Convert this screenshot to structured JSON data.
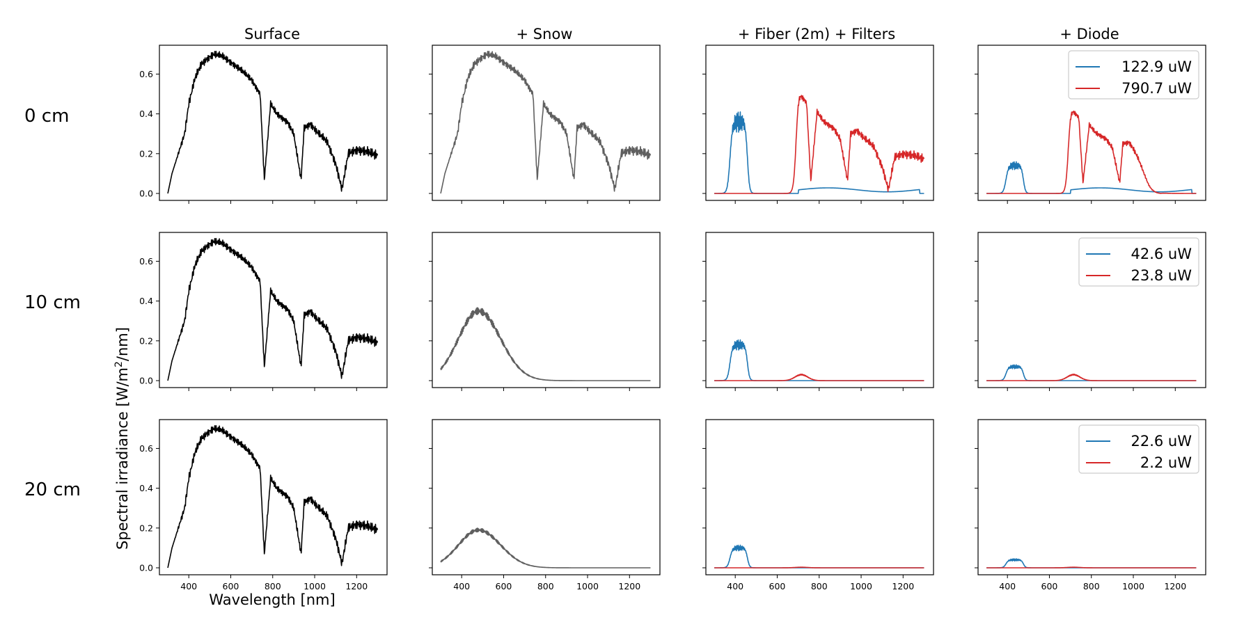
{
  "figure": {
    "xlabel": "Wavelength [nm]",
    "ylabel_prefix": "Spectral irradiance [W/m",
    "ylabel_sup": "2",
    "ylabel_suffix": "/nm]"
  },
  "columns": [
    {
      "title": "Surface"
    },
    {
      "title": "+ Snow"
    },
    {
      "title": "+ Fiber (2m) + Filters"
    },
    {
      "title": "+ Diode"
    }
  ],
  "rows": [
    {
      "label": "0 cm"
    },
    {
      "label": "10 cm"
    },
    {
      "label": "20 cm"
    }
  ],
  "colors": {
    "surface": "#000000",
    "snow": "#5f5f5f",
    "blue": "#1f77b4",
    "red": "#d62728",
    "frame": "#000000"
  },
  "chart_data": {
    "type": "line",
    "layout": "grid 3 rows x 4 columns",
    "x_range": [
      300,
      1300
    ],
    "xlim": [
      260,
      1345
    ],
    "ylim": [
      -0.035,
      0.745
    ],
    "x_ticks": [
      400,
      600,
      800,
      1000,
      1200
    ],
    "x_tick_labels": [
      "400",
      "600",
      "800",
      "1000",
      "1200"
    ],
    "y_ticks": [
      0.0,
      0.2,
      0.4,
      0.6
    ],
    "y_tick_labels": [
      "0.0",
      "0.2",
      "0.4",
      "0.6"
    ],
    "grid": false,
    "legend_position": "upper right",
    "attenuation_factor_by_depth": [
      1.0,
      0.5,
      0.26
    ],
    "surface_spectrum_key_points": {
      "x": [
        300,
        320,
        350,
        380,
        400,
        430,
        460,
        490,
        520,
        560,
        600,
        650,
        700,
        740,
        760,
        790,
        820,
        870,
        900,
        935,
        950,
        980,
        1010,
        1060,
        1100,
        1130,
        1160,
        1200,
        1250,
        1300
      ],
      "y": [
        0.0,
        0.1,
        0.2,
        0.3,
        0.45,
        0.58,
        0.65,
        0.68,
        0.7,
        0.69,
        0.66,
        0.62,
        0.57,
        0.5,
        0.07,
        0.45,
        0.4,
        0.36,
        0.3,
        0.07,
        0.33,
        0.35,
        0.31,
        0.26,
        0.15,
        0.02,
        0.2,
        0.22,
        0.21,
        0.19
      ]
    },
    "snow_surface_0cm": "same shape as surface, gray",
    "snow_10cm_peak": {
      "x": 480,
      "y": 0.35
    },
    "snow_20cm_peak": {
      "x": 480,
      "y": 0.19
    },
    "legends": [
      [
        {
          "name": "122.9 uW",
          "color": "#1f77b4"
        },
        {
          "name": "790.7 uW",
          "color": "#d62728"
        }
      ],
      [
        {
          "name": "42.6 uW",
          "color": "#1f77b4"
        },
        {
          "name": "23.8 uW",
          "color": "#d62728"
        }
      ],
      [
        {
          "name": "22.6 uW",
          "color": "#1f77b4"
        },
        {
          "name": "2.2 uW",
          "color": "#d62728"
        }
      ]
    ],
    "filter_peaks": {
      "fiber_blue": [
        0.36,
        0.18,
        0.1
      ],
      "fiber_red": [
        0.5,
        0.03,
        0.003
      ],
      "diode_blue": [
        0.14,
        0.07,
        0.04
      ],
      "diode_red": [
        0.42,
        0.03,
        0.003
      ]
    }
  }
}
